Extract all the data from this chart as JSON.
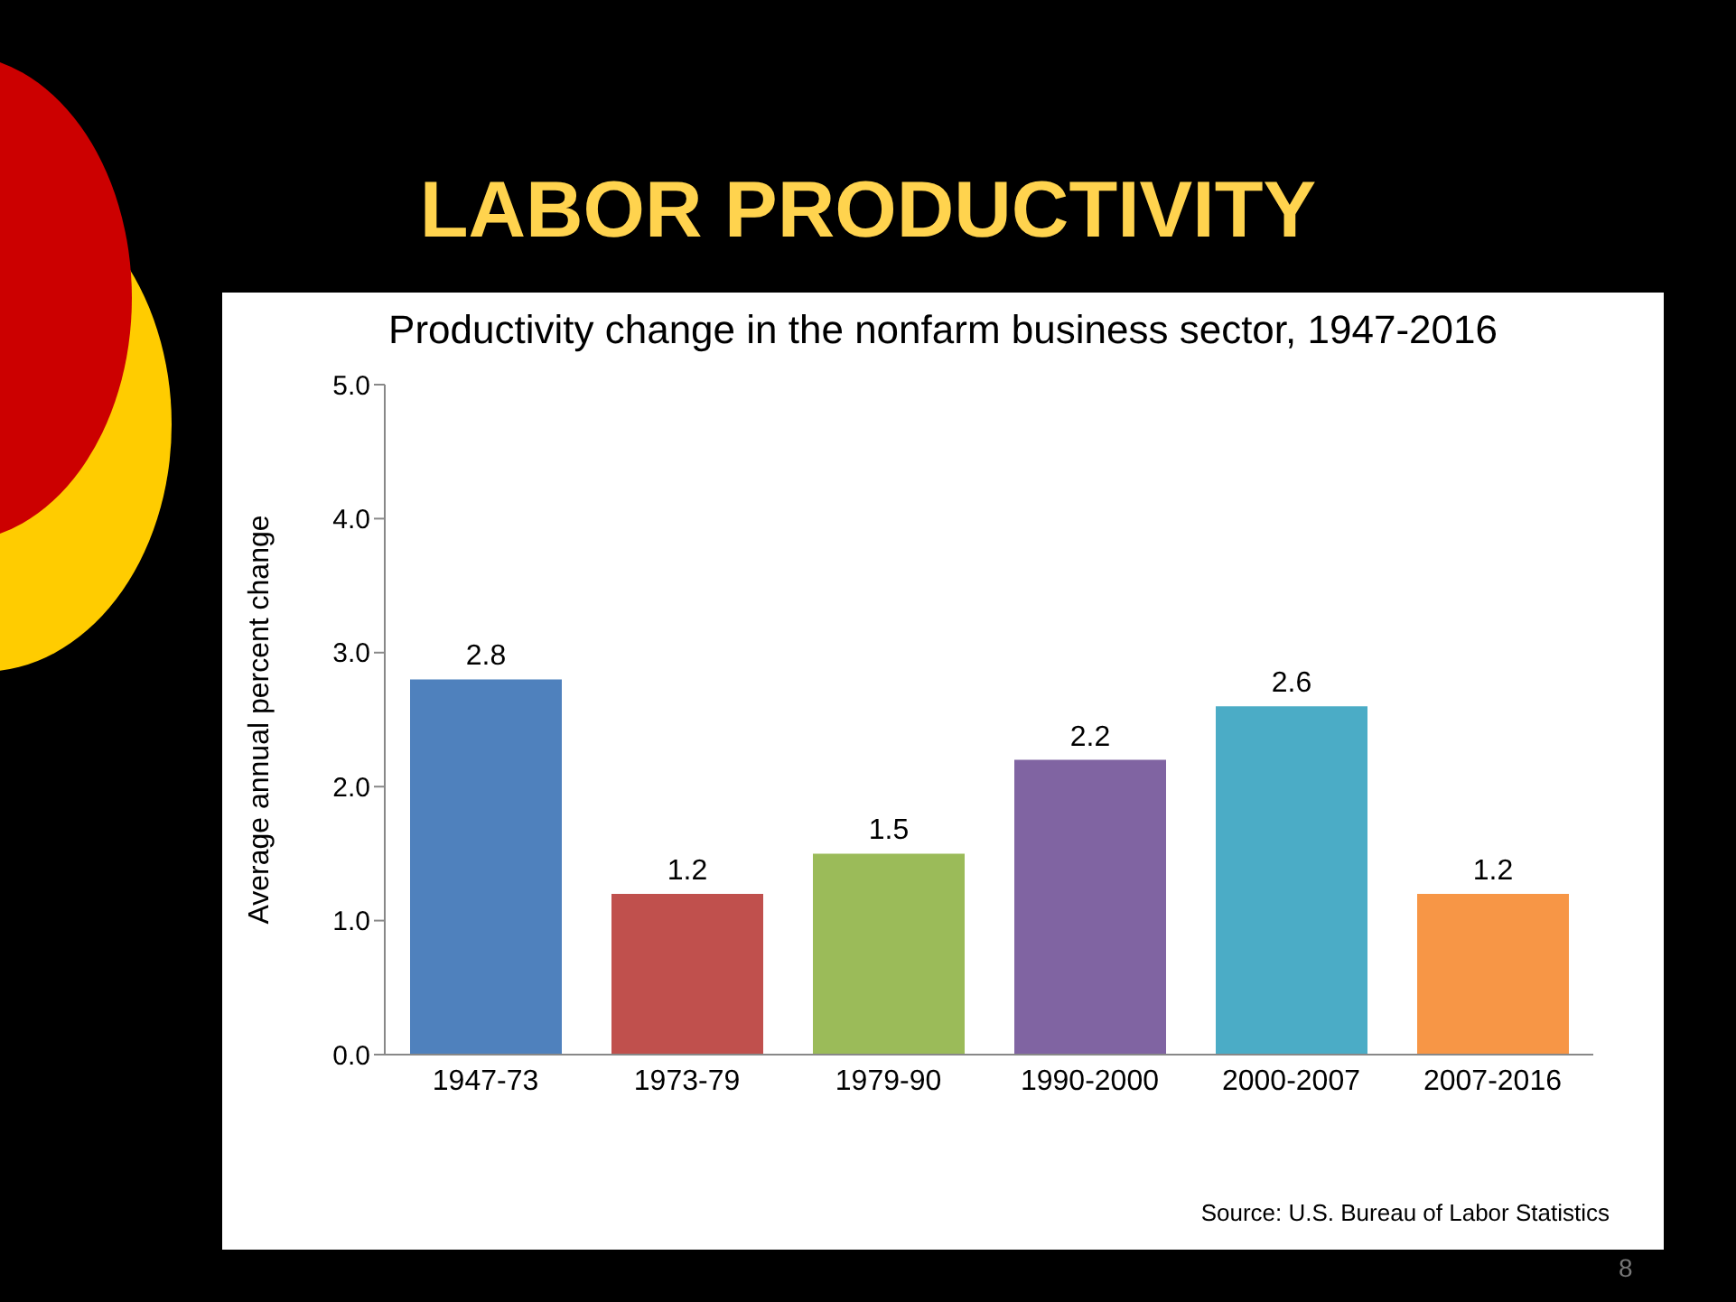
{
  "chart_data": {
    "type": "bar",
    "title": "LABOR PRODUCTIVITY",
    "subtitle": "Productivity change in the nonfarm business sector,  1947-2016",
    "ylabel": "Average annual percent change",
    "categories": [
      "1947-73",
      "1973-79",
      "1979-90",
      "1990-2000",
      "2000-2007",
      "2007-2016"
    ],
    "values": [
      2.8,
      1.2,
      1.5,
      2.2,
      2.6,
      1.2
    ],
    "colors": [
      "#4f81bd",
      "#c0504d",
      "#9bbb59",
      "#8064a2",
      "#4bacc6",
      "#f79646"
    ],
    "ylim": [
      0,
      5
    ],
    "yticks": [
      {
        "value": 0,
        "label": "0.0"
      },
      {
        "value": 1,
        "label": "1.0"
      },
      {
        "value": 2,
        "label": "2.0"
      },
      {
        "value": 3,
        "label": "3.0"
      },
      {
        "value": 4,
        "label": "4.0"
      },
      {
        "value": 5,
        "label": "5.0"
      }
    ],
    "data_labels": true,
    "grid": false,
    "annotations": [
      "Source: U.S. Bureau of Labor Statistics",
      "8"
    ]
  }
}
